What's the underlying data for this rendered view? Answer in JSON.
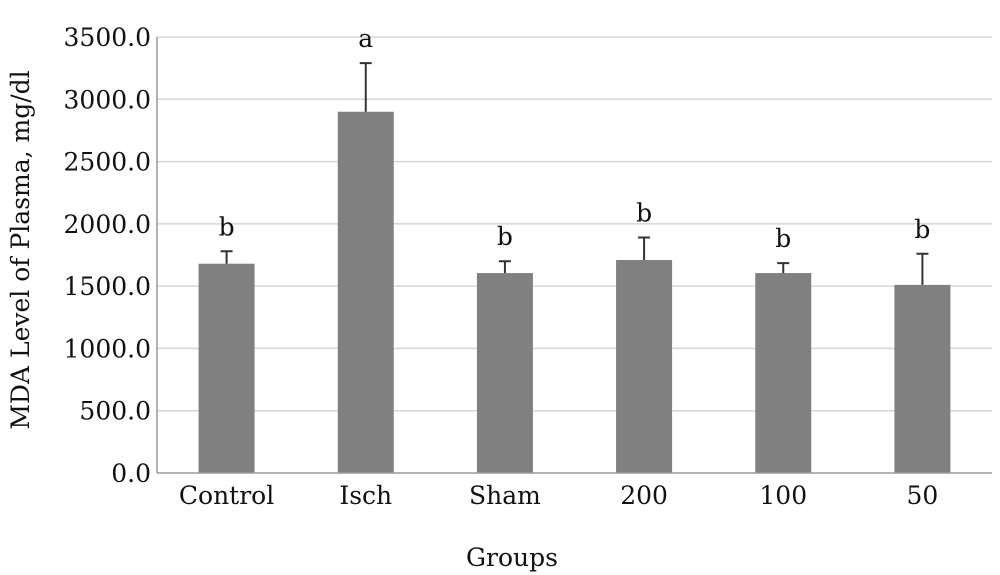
{
  "chart_data": {
    "type": "bar",
    "categories": [
      "Control",
      "Isch",
      "Sham",
      "200",
      "100",
      "50"
    ],
    "values": [
      1680,
      2900,
      1605,
      1710,
      1605,
      1510
    ],
    "errors": [
      100,
      390,
      95,
      180,
      80,
      250
    ],
    "significance_labels": [
      "b",
      "a",
      "b",
      "b",
      "b",
      "b"
    ],
    "xlabel": "Groups",
    "ylabel": "MDA Level of Plasma, mg/dl",
    "ylim": [
      0,
      3500
    ],
    "yticks": [
      0,
      500,
      1000,
      1500,
      2000,
      2500,
      3000,
      3500
    ],
    "ytick_labels": [
      "0.0",
      "500.0",
      "1000.0",
      "1500.0",
      "2000.0",
      "2500.0",
      "3000.0",
      "3500.0"
    ],
    "grid": "horizontal",
    "bar_color": "#808080",
    "grid_color": "#d6d6d6"
  }
}
